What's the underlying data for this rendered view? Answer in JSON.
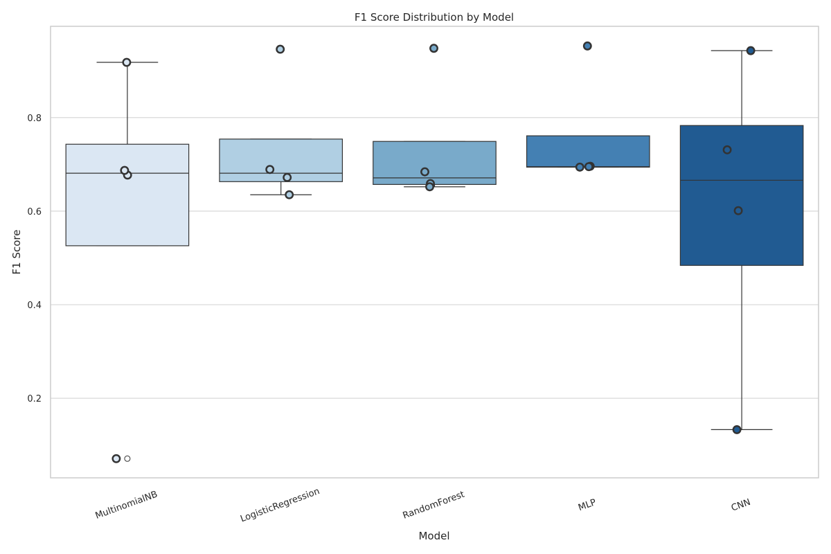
{
  "chart_data": {
    "type": "box",
    "title": "F1 Score Distribution by Model",
    "xlabel": "Model",
    "ylabel": "F1 Score",
    "ylim": [
      0.03,
      0.995
    ],
    "yticks": [
      0.2,
      0.4,
      0.6,
      0.8
    ],
    "grid": "horizontal",
    "categories": [
      "MultinomialNB",
      "LogisticRegression",
      "RandomForest",
      "MLP",
      "CNN"
    ],
    "colors": [
      "#dbe7f3",
      "#b0cfe3",
      "#79aaca",
      "#4480b3",
      "#215b92"
    ],
    "boxes": [
      {
        "q1": 0.526,
        "median": 0.681,
        "q3": 0.743,
        "whisker_low": 0.526,
        "whisker_high": 0.918,
        "fliers": [
          0.071
        ]
      },
      {
        "q1": 0.663,
        "median": 0.681,
        "q3": 0.754,
        "whisker_low": 0.635,
        "whisker_high": 0.754,
        "fliers": [
          0.946
        ]
      },
      {
        "q1": 0.657,
        "median": 0.671,
        "q3": 0.749,
        "whisker_low": 0.652,
        "whisker_high": 0.749,
        "fliers": [
          0.948
        ]
      },
      {
        "q1": 0.694,
        "median": 0.695,
        "q3": 0.761,
        "whisker_low": 0.694,
        "whisker_high": 0.761,
        "fliers": [
          0.953
        ]
      },
      {
        "q1": 0.484,
        "median": 0.666,
        "q3": 0.783,
        "whisker_low": 0.133,
        "whisker_high": 0.943,
        "fliers": []
      }
    ],
    "points": [
      [
        0.918,
        0.677,
        0.687,
        0.071
      ],
      [
        0.946,
        0.689,
        0.672,
        0.635
      ],
      [
        0.948,
        0.684,
        0.659,
        0.652
      ],
      [
        0.953,
        0.694,
        0.696,
        0.695
      ],
      [
        0.943,
        0.731,
        0.601,
        0.133
      ]
    ]
  }
}
